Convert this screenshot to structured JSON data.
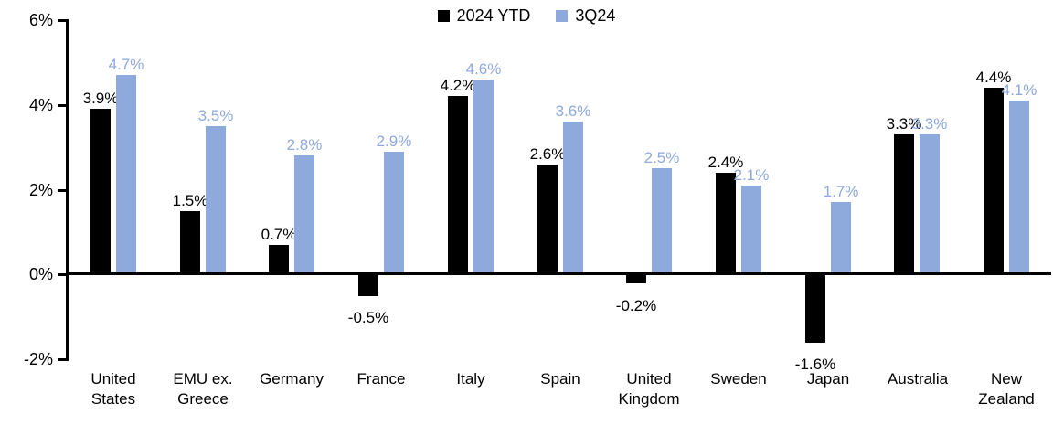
{
  "chart_data": {
    "type": "bar",
    "title": "",
    "xlabel": "",
    "ylabel": "",
    "grid": false,
    "legend_position": "top-center",
    "data_labels": true,
    "ylim": [
      -2,
      6
    ],
    "yticks": [
      {
        "value": 6,
        "label": "6%"
      },
      {
        "value": 4,
        "label": "4%"
      },
      {
        "value": 2,
        "label": "2%"
      },
      {
        "value": 0,
        "label": "0%"
      },
      {
        "value": -2,
        "label": "-2%"
      }
    ],
    "categories": [
      "United States",
      "EMU ex. Greece",
      "Germany",
      "France",
      "Italy",
      "Spain",
      "United Kingdom",
      "Sweden",
      "Japan",
      "Australia",
      "New Zealand"
    ],
    "series": [
      {
        "name": "2024 YTD",
        "color": "#000000",
        "values": [
          3.9,
          1.5,
          0.7,
          -0.5,
          4.2,
          2.6,
          -0.2,
          2.4,
          -1.6,
          3.3,
          4.4
        ],
        "labels": [
          "3.9%",
          "1.5%",
          "0.7%",
          "-0.5%",
          "4.2%",
          "2.6%",
          "-0.2%",
          "2.4%",
          "-1.6%",
          "3.3%",
          "4.4%"
        ]
      },
      {
        "name": "3Q24",
        "color": "#8EA9DB",
        "values": [
          4.7,
          3.5,
          2.8,
          2.9,
          4.6,
          3.6,
          2.5,
          2.1,
          1.7,
          3.3,
          4.1
        ],
        "labels": [
          "4.7%",
          "3.5%",
          "2.8%",
          "2.9%",
          "4.6%",
          "3.6%",
          "2.5%",
          "2.1%",
          "1.7%",
          "3.3%",
          "4.1%"
        ]
      }
    ]
  }
}
